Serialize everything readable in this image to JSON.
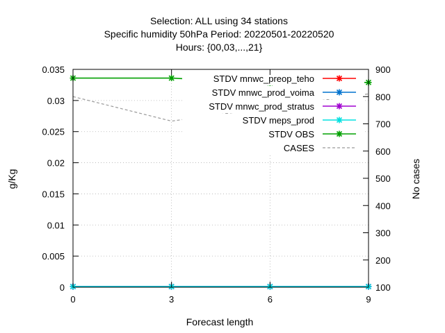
{
  "chart_data": {
    "type": "line",
    "title_lines": [
      "Selection: ALL using    34 stations",
      "Specific humidity 50hPa   Period: 20220501-20220520",
      "Hours: {00,03,...,21}"
    ],
    "xlabel": "Forecast length",
    "ylabel": "g/Kg",
    "y2label": "No cases",
    "x": [
      0,
      3,
      6,
      9
    ],
    "xticks": [
      "0",
      "3",
      "6",
      "9"
    ],
    "xlim": [
      0,
      9
    ],
    "ylim": [
      0,
      0.035
    ],
    "yticks": [
      "0",
      "0.005",
      "0.01",
      "0.015",
      "0.02",
      "0.025",
      "0.03",
      "0.035"
    ],
    "y2lim": [
      100,
      900
    ],
    "y2ticks": [
      "100",
      "200",
      "300",
      "400",
      "500",
      "600",
      "700",
      "800",
      "900"
    ],
    "grid": true,
    "legend_position": "top-right",
    "series": [
      {
        "name": "STDV mnwc_preop_teho",
        "axis": "y",
        "color": "#ff0000",
        "values": [
          0.0001,
          0.0001,
          0.0001,
          0.0001
        ]
      },
      {
        "name": "STDV mnwc_prod_voima",
        "axis": "y",
        "color": "#0072ce",
        "values": [
          0.0001,
          0.0001,
          0.0001,
          0.0001
        ]
      },
      {
        "name": "STDV mnwc_prod_stratus",
        "axis": "y",
        "color": "#a000d0",
        "values": [
          0.0001,
          0.0001,
          0.0001,
          0.0001
        ]
      },
      {
        "name": "STDV meps_prod",
        "axis": "y",
        "color": "#00e0e0",
        "values": [
          0.0001,
          0.0001,
          0.0001,
          0.0001
        ]
      },
      {
        "name": "STDV OBS",
        "axis": "y",
        "color": "#00a000",
        "values": [
          0.0336,
          0.0336,
          0.0328,
          0.0329
        ]
      },
      {
        "name": "CASES",
        "axis": "y2",
        "color": "#999999",
        "dashed": true,
        "values": [
          800,
          710,
          760,
          810
        ]
      }
    ]
  }
}
